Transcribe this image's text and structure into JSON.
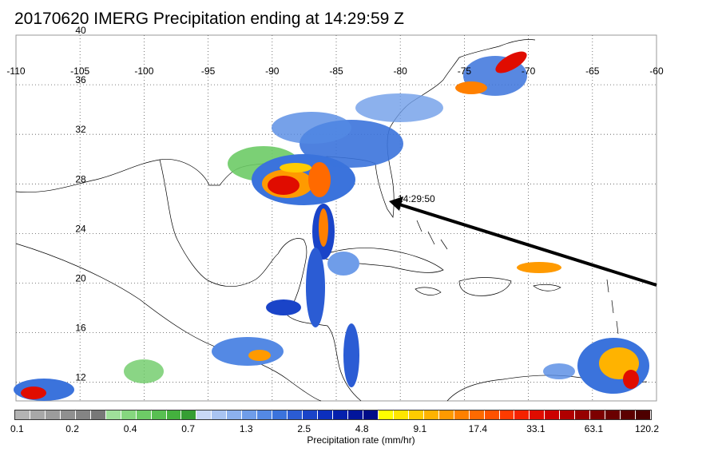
{
  "title": "20170620 IMERG Precipitation ending at 14:29:59 Z",
  "map": {
    "lon_ticks": [
      "-110",
      "-105",
      "-100",
      "-95",
      "-90",
      "-85",
      "-80",
      "-75",
      "-70",
      "-65",
      "-60"
    ],
    "lat_ticks": [
      "40",
      "36",
      "32",
      "28",
      "24",
      "20",
      "16",
      "12"
    ],
    "extent": {
      "lon_min": -110,
      "lon_max": -60,
      "lat_min": 10.5,
      "lat_max": 40
    },
    "overpass_time_label": "14:29:50",
    "track_color": "#000000"
  },
  "legend": {
    "title": "Precipitation rate (mm/hr)",
    "labels": [
      "0.1",
      "0.2",
      "0.4",
      "0.7",
      "1.3",
      "2.5",
      "4.8",
      "9.1",
      "17.4",
      "33.1",
      "63.1",
      "120.2"
    ],
    "colors": [
      "#b4b4b4",
      "#a8a8a8",
      "#9c9c9c",
      "#909090",
      "#848484",
      "#787878",
      "#9fe09a",
      "#86d77f",
      "#6dcb66",
      "#58bf52",
      "#44b13e",
      "#359e33",
      "#c8d8f6",
      "#a9c4f2",
      "#8cb1ee",
      "#6f9de9",
      "#5489e4",
      "#3b73dc",
      "#2b5cd4",
      "#1a44c8",
      "#0c2fbd",
      "#0520ad",
      "#02159b",
      "#000c88",
      "#ffff00",
      "#ffe600",
      "#ffcc00",
      "#ffb300",
      "#ff9a00",
      "#ff8000",
      "#ff6a00",
      "#ff5200",
      "#ff3b00",
      "#f52200",
      "#e00c00",
      "#cc0000",
      "#b00000",
      "#960000",
      "#7d0000",
      "#6a0000",
      "#5c0000",
      "#4d0000"
    ]
  }
}
